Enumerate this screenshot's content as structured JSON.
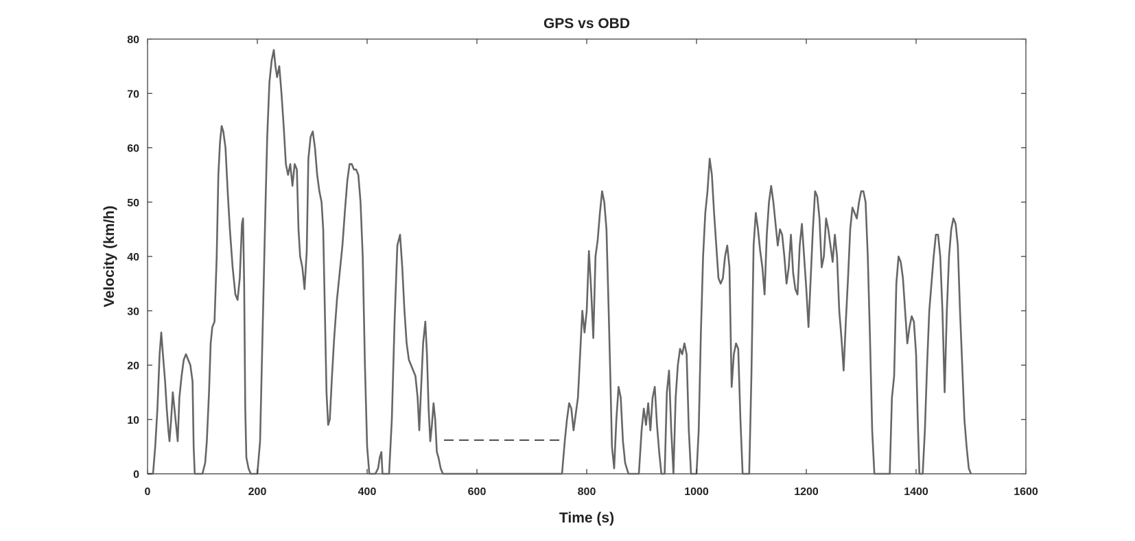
{
  "chart_data": {
    "type": "line",
    "title": "GPS vs OBD",
    "xlabel": "Time (s)",
    "ylabel": "Velocity (km/h)",
    "xlim": [
      0,
      1600
    ],
    "ylim": [
      0,
      80
    ],
    "xticks": [
      "0",
      "200",
      "400",
      "600",
      "800",
      "1000",
      "1200",
      "1400",
      "1600"
    ],
    "yticks": [
      "0",
      "10",
      "20",
      "30",
      "40",
      "50",
      "60",
      "70",
      "80"
    ],
    "grid": false,
    "legend": "none",
    "series": [
      {
        "style": "solid",
        "color": "#666666",
        "points": [
          [
            0,
            0
          ],
          [
            10,
            0
          ],
          [
            14,
            5
          ],
          [
            18,
            12
          ],
          [
            22,
            22
          ],
          [
            25,
            26
          ],
          [
            28,
            22
          ],
          [
            32,
            17
          ],
          [
            35,
            12
          ],
          [
            38,
            8
          ],
          [
            40,
            6
          ],
          [
            43,
            10
          ],
          [
            46,
            15
          ],
          [
            49,
            12
          ],
          [
            52,
            9
          ],
          [
            55,
            6
          ],
          [
            58,
            14
          ],
          [
            62,
            18
          ],
          [
            66,
            21
          ],
          [
            70,
            22
          ],
          [
            74,
            21
          ],
          [
            78,
            20
          ],
          [
            82,
            17
          ],
          [
            84,
            5
          ],
          [
            86,
            0
          ],
          [
            100,
            0
          ],
          [
            105,
            2
          ],
          [
            108,
            6
          ],
          [
            112,
            15
          ],
          [
            115,
            24
          ],
          [
            118,
            27
          ],
          [
            122,
            28
          ],
          [
            126,
            40
          ],
          [
            129,
            55
          ],
          [
            132,
            61
          ],
          [
            135,
            64
          ],
          [
            138,
            63
          ],
          [
            142,
            60
          ],
          [
            146,
            52
          ],
          [
            150,
            45
          ],
          [
            155,
            38
          ],
          [
            160,
            33
          ],
          [
            164,
            32
          ],
          [
            168,
            36
          ],
          [
            172,
            46
          ],
          [
            174,
            47
          ],
          [
            176,
            35
          ],
          [
            178,
            12
          ],
          [
            180,
            3
          ],
          [
            184,
            1
          ],
          [
            188,
            0
          ],
          [
            200,
            0
          ],
          [
            205,
            6
          ],
          [
            210,
            28
          ],
          [
            215,
            50
          ],
          [
            218,
            62
          ],
          [
            222,
            72
          ],
          [
            226,
            76
          ],
          [
            230,
            78
          ],
          [
            233,
            75
          ],
          [
            236,
            73
          ],
          [
            240,
            75
          ],
          [
            244,
            70
          ],
          [
            248,
            64
          ],
          [
            252,
            57
          ],
          [
            256,
            55
          ],
          [
            260,
            57
          ],
          [
            264,
            53
          ],
          [
            268,
            57
          ],
          [
            272,
            56
          ],
          [
            275,
            45
          ],
          [
            278,
            40
          ],
          [
            282,
            38
          ],
          [
            286,
            34
          ],
          [
            290,
            41
          ],
          [
            293,
            58
          ],
          [
            297,
            62
          ],
          [
            301,
            63
          ],
          [
            305,
            60
          ],
          [
            309,
            55
          ],
          [
            313,
            52
          ],
          [
            317,
            50
          ],
          [
            320,
            45
          ],
          [
            323,
            30
          ],
          [
            326,
            15
          ],
          [
            329,
            9
          ],
          [
            332,
            10
          ],
          [
            336,
            18
          ],
          [
            340,
            25
          ],
          [
            345,
            32
          ],
          [
            350,
            37
          ],
          [
            355,
            42
          ],
          [
            360,
            49
          ],
          [
            364,
            54
          ],
          [
            368,
            57
          ],
          [
            372,
            57
          ],
          [
            376,
            56
          ],
          [
            380,
            56
          ],
          [
            384,
            55
          ],
          [
            388,
            50
          ],
          [
            392,
            40
          ],
          [
            396,
            20
          ],
          [
            400,
            5
          ],
          [
            404,
            0
          ],
          [
            415,
            0
          ],
          [
            420,
            1
          ],
          [
            423,
            3
          ],
          [
            426,
            4
          ],
          [
            428,
            0
          ],
          [
            440,
            0
          ],
          [
            445,
            10
          ],
          [
            450,
            28
          ],
          [
            455,
            42
          ],
          [
            460,
            44
          ],
          [
            464,
            38
          ],
          [
            468,
            30
          ],
          [
            472,
            24
          ],
          [
            476,
            21
          ],
          [
            480,
            20
          ],
          [
            484,
            19
          ],
          [
            488,
            18
          ],
          [
            492,
            14
          ],
          [
            495,
            8
          ],
          [
            498,
            15
          ],
          [
            502,
            24
          ],
          [
            506,
            28
          ],
          [
            509,
            22
          ],
          [
            512,
            12
          ],
          [
            515,
            6
          ],
          [
            518,
            9
          ],
          [
            521,
            13
          ],
          [
            524,
            10
          ],
          [
            527,
            4
          ],
          [
            530,
            3
          ],
          [
            534,
            1
          ],
          [
            538,
            0
          ],
          [
            550,
            0
          ],
          [
            600,
            0
          ],
          [
            650,
            0
          ],
          [
            700,
            0
          ],
          [
            755,
            0
          ],
          [
            760,
            6
          ],
          [
            764,
            10
          ],
          [
            768,
            13
          ],
          [
            772,
            12
          ],
          [
            776,
            8
          ],
          [
            780,
            11
          ],
          [
            784,
            14
          ],
          [
            788,
            22
          ],
          [
            792,
            30
          ],
          [
            796,
            26
          ],
          [
            800,
            30
          ],
          [
            804,
            41
          ],
          [
            808,
            34
          ],
          [
            812,
            25
          ],
          [
            816,
            40
          ],
          [
            820,
            43
          ],
          [
            824,
            48
          ],
          [
            828,
            52
          ],
          [
            832,
            50
          ],
          [
            836,
            45
          ],
          [
            840,
            30
          ],
          [
            843,
            18
          ],
          [
            846,
            5
          ],
          [
            850,
            1
          ],
          [
            854,
            10
          ],
          [
            858,
            16
          ],
          [
            862,
            14
          ],
          [
            866,
            6
          ],
          [
            870,
            2
          ],
          [
            876,
            0
          ],
          [
            895,
            0
          ],
          [
            900,
            8
          ],
          [
            904,
            12
          ],
          [
            908,
            9
          ],
          [
            912,
            13
          ],
          [
            916,
            8
          ],
          [
            920,
            14
          ],
          [
            924,
            16
          ],
          [
            928,
            9
          ],
          [
            932,
            4
          ],
          [
            936,
            0
          ],
          [
            942,
            0
          ],
          [
            946,
            15
          ],
          [
            950,
            19
          ],
          [
            954,
            8
          ],
          [
            958,
            0
          ],
          [
            962,
            14
          ],
          [
            966,
            20
          ],
          [
            970,
            23
          ],
          [
            974,
            22
          ],
          [
            978,
            24
          ],
          [
            982,
            22
          ],
          [
            986,
            8
          ],
          [
            990,
            0
          ],
          [
            1000,
            0
          ],
          [
            1004,
            8
          ],
          [
            1008,
            26
          ],
          [
            1012,
            40
          ],
          [
            1016,
            48
          ],
          [
            1020,
            52
          ],
          [
            1024,
            58
          ],
          [
            1028,
            55
          ],
          [
            1032,
            48
          ],
          [
            1036,
            42
          ],
          [
            1040,
            36
          ],
          [
            1044,
            35
          ],
          [
            1048,
            36
          ],
          [
            1052,
            40
          ],
          [
            1056,
            42
          ],
          [
            1060,
            38
          ],
          [
            1064,
            16
          ],
          [
            1068,
            22
          ],
          [
            1072,
            24
          ],
          [
            1076,
            23
          ],
          [
            1080,
            10
          ],
          [
            1084,
            0
          ],
          [
            1096,
            0
          ],
          [
            1100,
            18
          ],
          [
            1104,
            42
          ],
          [
            1108,
            48
          ],
          [
            1112,
            45
          ],
          [
            1116,
            41
          ],
          [
            1120,
            38
          ],
          [
            1124,
            33
          ],
          [
            1128,
            44
          ],
          [
            1132,
            50
          ],
          [
            1136,
            53
          ],
          [
            1140,
            50
          ],
          [
            1144,
            46
          ],
          [
            1148,
            42
          ],
          [
            1152,
            45
          ],
          [
            1156,
            44
          ],
          [
            1160,
            40
          ],
          [
            1164,
            35
          ],
          [
            1168,
            38
          ],
          [
            1172,
            44
          ],
          [
            1176,
            37
          ],
          [
            1180,
            34
          ],
          [
            1184,
            33
          ],
          [
            1188,
            42
          ],
          [
            1192,
            46
          ],
          [
            1196,
            40
          ],
          [
            1200,
            34
          ],
          [
            1204,
            27
          ],
          [
            1208,
            36
          ],
          [
            1212,
            45
          ],
          [
            1216,
            52
          ],
          [
            1220,
            51
          ],
          [
            1224,
            47
          ],
          [
            1228,
            38
          ],
          [
            1232,
            40
          ],
          [
            1236,
            47
          ],
          [
            1240,
            45
          ],
          [
            1244,
            42
          ],
          [
            1248,
            39
          ],
          [
            1252,
            44
          ],
          [
            1256,
            40
          ],
          [
            1260,
            30
          ],
          [
            1264,
            25
          ],
          [
            1268,
            19
          ],
          [
            1272,
            28
          ],
          [
            1276,
            36
          ],
          [
            1280,
            45
          ],
          [
            1284,
            49
          ],
          [
            1288,
            48
          ],
          [
            1292,
            47
          ],
          [
            1296,
            50
          ],
          [
            1300,
            52
          ],
          [
            1304,
            52
          ],
          [
            1308,
            50
          ],
          [
            1312,
            40
          ],
          [
            1316,
            25
          ],
          [
            1320,
            8
          ],
          [
            1324,
            0
          ],
          [
            1352,
            0
          ],
          [
            1356,
            14
          ],
          [
            1360,
            18
          ],
          [
            1364,
            35
          ],
          [
            1368,
            40
          ],
          [
            1372,
            39
          ],
          [
            1376,
            36
          ],
          [
            1380,
            30
          ],
          [
            1384,
            24
          ],
          [
            1388,
            27
          ],
          [
            1392,
            29
          ],
          [
            1396,
            28
          ],
          [
            1400,
            22
          ],
          [
            1403,
            10
          ],
          [
            1406,
            0
          ],
          [
            1412,
            0
          ],
          [
            1416,
            8
          ],
          [
            1420,
            20
          ],
          [
            1424,
            30
          ],
          [
            1428,
            35
          ],
          [
            1432,
            40
          ],
          [
            1436,
            44
          ],
          [
            1440,
            44
          ],
          [
            1444,
            40
          ],
          [
            1448,
            30
          ],
          [
            1452,
            15
          ],
          [
            1456,
            30
          ],
          [
            1460,
            40
          ],
          [
            1464,
            45
          ],
          [
            1468,
            47
          ],
          [
            1472,
            46
          ],
          [
            1476,
            42
          ],
          [
            1480,
            30
          ],
          [
            1484,
            20
          ],
          [
            1488,
            10
          ],
          [
            1492,
            5
          ],
          [
            1496,
            1
          ],
          [
            1500,
            0
          ]
        ]
      },
      {
        "style": "dashed",
        "color": "#333333",
        "points": [
          [
            540,
            6.2
          ],
          [
            760,
            6.2
          ]
        ]
      }
    ]
  }
}
